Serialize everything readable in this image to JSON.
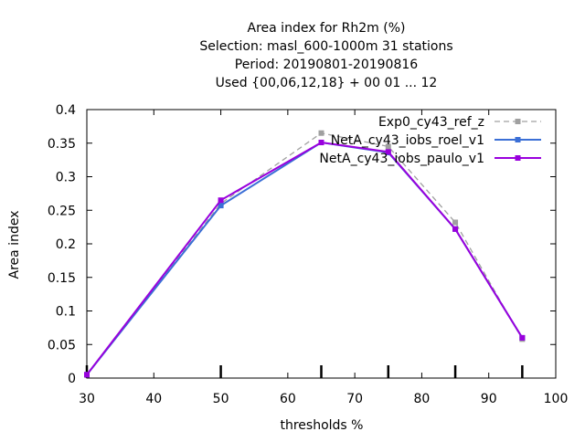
{
  "chart_data": {
    "type": "line",
    "title_lines": [
      "Area index  for Rh2m (%)",
      "Selection: masl_600-1000m     31 stations",
      "Period: 20190801-20190816",
      "Used {00,06,12,18} + 00 01 ... 12"
    ],
    "xlabel": "thresholds %",
    "ylabel": "Area index",
    "xlim": [
      30,
      100
    ],
    "ylim": [
      0,
      0.4
    ],
    "xticks": [
      30,
      40,
      50,
      60,
      70,
      80,
      90,
      100
    ],
    "xtick_labels": [
      "30",
      "40",
      "50",
      "60",
      "70",
      "80",
      "90",
      "100"
    ],
    "yticks": [
      0,
      0.05,
      0.1,
      0.15,
      0.2,
      0.25,
      0.3,
      0.35,
      0.4
    ],
    "ytick_labels": [
      "0",
      "0.05",
      "0.1",
      "0.15",
      "0.2",
      "0.25",
      "0.3",
      "0.35",
      "0.4"
    ],
    "threshold_marks": [
      30,
      50,
      65,
      75,
      85,
      95
    ],
    "grid": false,
    "legend_position": "top-right",
    "series": [
      {
        "name": "Exp0_cy43_ref_z",
        "color": "#a0a0a0",
        "dashed": true,
        "x": [
          30,
          50,
          65,
          75,
          85,
          95
        ],
        "y": [
          0.005,
          0.26,
          0.365,
          0.345,
          0.232,
          0.058
        ]
      },
      {
        "name": "NetA_cy43_iobs_roel_v1",
        "color": "#3b6fd6",
        "dashed": false,
        "x": [
          30,
          50,
          65,
          75,
          85,
          95
        ],
        "y": [
          0.005,
          0.257,
          0.351,
          0.336,
          0.222,
          0.06
        ]
      },
      {
        "name": "NetA_cy43_iobs_paulo_v1",
        "color": "#9900dd",
        "dashed": false,
        "x": [
          30,
          50,
          65,
          75,
          85,
          95
        ],
        "y": [
          0.005,
          0.265,
          0.351,
          0.337,
          0.222,
          0.06
        ]
      }
    ]
  }
}
